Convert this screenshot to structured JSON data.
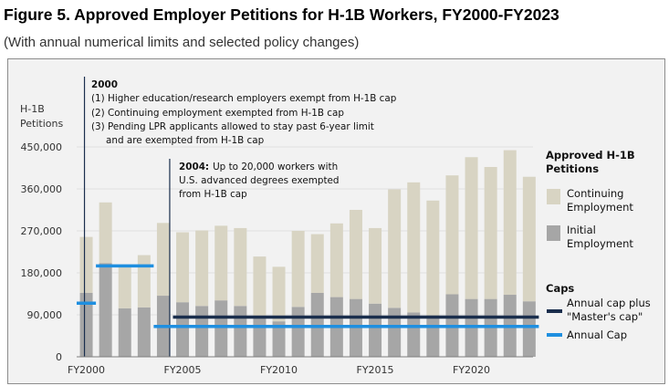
{
  "figure": {
    "title": "Figure 5. Approved Employer Petitions for H-1B Workers, FY2000-FY2023",
    "subtitle": "(With annual numerical limits and selected policy changes)"
  },
  "chart_data": {
    "type": "bar",
    "stacked": true,
    "ylabel_line1": "H-1B",
    "ylabel_line2": "Petitions",
    "ylim": [
      0,
      450000
    ],
    "y_ticks": [
      0,
      90000,
      180000,
      270000,
      360000,
      450000
    ],
    "y_tick_labels": [
      "0",
      "90,000",
      "180,000",
      "270,000",
      "360,000",
      "450,000"
    ],
    "x_tick_labels": [
      {
        "year": 2000,
        "label": "FY2000"
      },
      {
        "year": 2005,
        "label": "FY2005"
      },
      {
        "year": 2010,
        "label": "FY2010"
      },
      {
        "year": 2015,
        "label": "FY2015"
      },
      {
        "year": 2020,
        "label": "FY2020"
      }
    ],
    "categories": [
      2000,
      2001,
      2002,
      2003,
      2004,
      2005,
      2006,
      2007,
      2008,
      2009,
      2010,
      2011,
      2012,
      2013,
      2014,
      2015,
      2016,
      2017,
      2018,
      2019,
      2020,
      2021,
      2022,
      2023
    ],
    "series": [
      {
        "name": "Initial Employment",
        "color": "#a6a6a6",
        "values": [
          137000,
          201000,
          104000,
          106000,
          131000,
          117000,
          109000,
          121000,
          109000,
          87000,
          76000,
          107000,
          137000,
          128000,
          124000,
          114000,
          105000,
          95000,
          89000,
          134000,
          124000,
          124000,
          133000,
          119000
        ]
      },
      {
        "name": "Continuing Employment",
        "color": "#d8d4c3",
        "values": [
          120000,
          130000,
          93000,
          112000,
          156000,
          150000,
          162000,
          160000,
          167000,
          128000,
          117000,
          163000,
          126000,
          158000,
          191000,
          162000,
          254000,
          279000,
          246000,
          255000,
          304000,
          283000,
          310000,
          267000
        ]
      }
    ],
    "caps": [
      {
        "name": "Annual Cap",
        "color": "#1f8fe0",
        "segments": [
          {
            "from": 1999.5,
            "to": 2000.5,
            "value": 115000
          },
          {
            "from": 2000.5,
            "to": 2003.5,
            "value": 195000
          },
          {
            "from": 2003.5,
            "to": 2023.5,
            "value": 65000
          }
        ]
      },
      {
        "name": "Annual cap plus \"Master's cap\"",
        "color": "#1a2e4d",
        "segments": [
          {
            "from": 2004.5,
            "to": 2023.5,
            "value": 85000
          }
        ]
      }
    ],
    "legend": {
      "title_line1": "Approved  H-1B",
      "title_line2": "Petitions",
      "continuing_line1": "Continuing",
      "continuing_line2": "Employment",
      "initial_line1": "Initial",
      "initial_line2": "Employment",
      "caps_title": "Caps",
      "master_line1": "Annual cap plus",
      "master_line2": "\"Master's cap\"",
      "annual_cap": "Annual Cap"
    },
    "annotations": {
      "a2000": {
        "year": 2000,
        "title": "2000",
        "line1": "(1) Higher education/research employers exempt from H-1B cap",
        "line2": "(2) Continuing employment exempted from H-1B cap",
        "line3": "(3) Pending LPR applicants allowed to stay past 6-year limit",
        "line4": "and are exempted from H-1B cap"
      },
      "a2004": {
        "year": 2004,
        "title": "2004:",
        "line1_rest": "Up to 20,000 workers with",
        "line2": "U.S. advanced degrees exempted",
        "line3": "from H-1B cap"
      }
    }
  }
}
